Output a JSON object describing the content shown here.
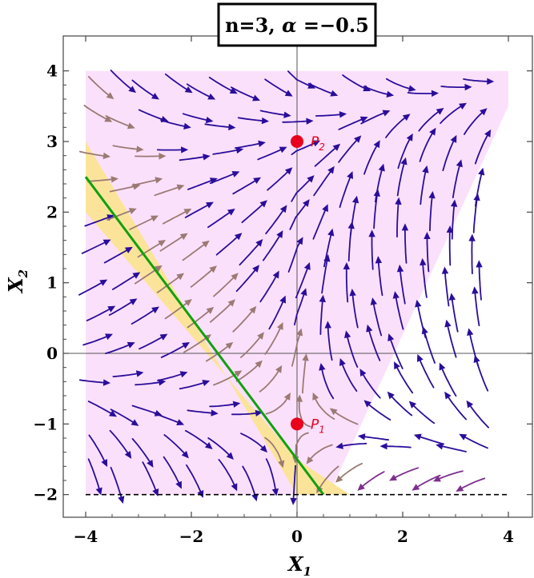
{
  "chart_data": {
    "type": "streamplot",
    "title_parts": {
      "lead": "n=3, ",
      "greek": "α",
      "tail": " =−0.5"
    },
    "xlabel": {
      "base": "X",
      "sub": "1"
    },
    "ylabel": {
      "base": "X",
      "sub": "2"
    },
    "xlim": [
      -4.4,
      4.4
    ],
    "ylim": [
      -2.3,
      4.3
    ],
    "xticks": [
      -4,
      -2,
      0,
      2,
      4
    ],
    "xtick_labels": [
      "−4",
      "−2",
      "0",
      "2",
      "4"
    ],
    "yticks": [
      -2,
      -1,
      0,
      1,
      2,
      3,
      4
    ],
    "ytick_labels": [
      "−2",
      "−1",
      "0",
      "1",
      "2",
      "3",
      "4"
    ],
    "pink_region": [
      [
        -4,
        4
      ],
      [
        4,
        4
      ],
      [
        4,
        3.5
      ],
      [
        0.6,
        -2
      ],
      [
        -4,
        -2
      ]
    ],
    "yellow_band": [
      [
        -4,
        3
      ],
      [
        -4,
        2
      ],
      [
        0,
        -1.5
      ],
      [
        1,
        -2
      ],
      [
        0,
        -2
      ]
    ],
    "green_line": [
      [
        -4,
        2.5
      ],
      [
        0.5,
        -2
      ]
    ],
    "dashed_line": [
      [
        -4,
        -2
      ],
      [
        4,
        -2
      ]
    ],
    "points": [
      {
        "label": "P",
        "sub": "1",
        "x": 0,
        "y": -1
      },
      {
        "label": "P",
        "sub": "2",
        "x": 0,
        "y": 3
      }
    ],
    "colors": {
      "pink": "#fbe0fb",
      "yellow": "#fbe49a",
      "green": "#10a010",
      "stream": "#2a0d9a",
      "stream_purple": "#7d2f8d",
      "stream_band": "#9a7a73",
      "point": "#e8001c"
    }
  }
}
